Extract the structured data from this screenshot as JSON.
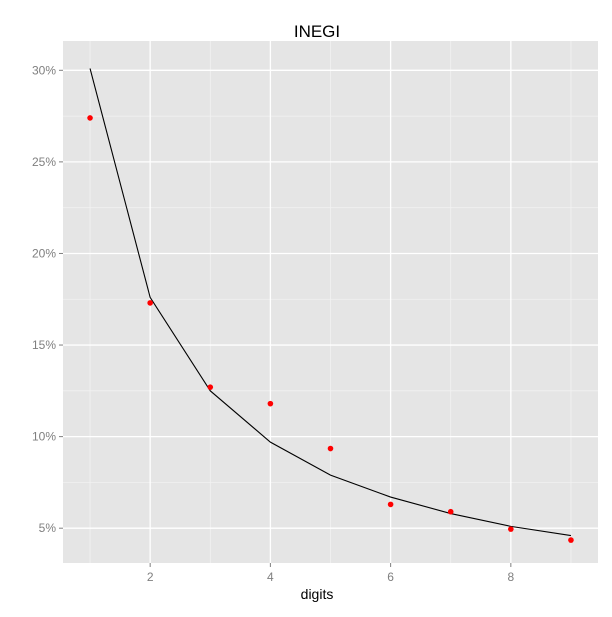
{
  "chart_data": {
    "type": "scatter",
    "title": "INEGI",
    "xlabel": "digits",
    "ylabel": "",
    "xlim": [
      0.55,
      9.45
    ],
    "ylim": [
      3.1,
      31.6
    ],
    "x_ticks": [
      2,
      4,
      6,
      8
    ],
    "y_ticks": [
      {
        "value": 5,
        "label": "5%"
      },
      {
        "value": 10,
        "label": "10%"
      },
      {
        "value": 15,
        "label": "15%"
      },
      {
        "value": 20,
        "label": "20%"
      },
      {
        "value": 25,
        "label": "25%"
      },
      {
        "value": 30,
        "label": "30%"
      }
    ],
    "grid": true,
    "series": [
      {
        "kind": "points",
        "color": "#ff0000",
        "x": [
          1,
          2,
          3,
          4,
          5,
          6,
          7,
          8,
          9
        ],
        "y": [
          27.4,
          17.3,
          12.7,
          11.8,
          9.35,
          6.3,
          5.9,
          4.95,
          4.35
        ]
      },
      {
        "kind": "line",
        "color": "#000000",
        "x": [
          1,
          2,
          3,
          4,
          5,
          6,
          7,
          8,
          9
        ],
        "y": [
          30.1,
          17.6,
          12.5,
          9.7,
          7.9,
          6.7,
          5.8,
          5.1,
          4.6
        ]
      }
    ],
    "colors": {
      "panel": "#e5e5e5",
      "grid_major": "#ffffff",
      "grid_minor": "#f2f2f2",
      "tick_text": "#7f7f7f",
      "title_text": "#000000"
    }
  }
}
